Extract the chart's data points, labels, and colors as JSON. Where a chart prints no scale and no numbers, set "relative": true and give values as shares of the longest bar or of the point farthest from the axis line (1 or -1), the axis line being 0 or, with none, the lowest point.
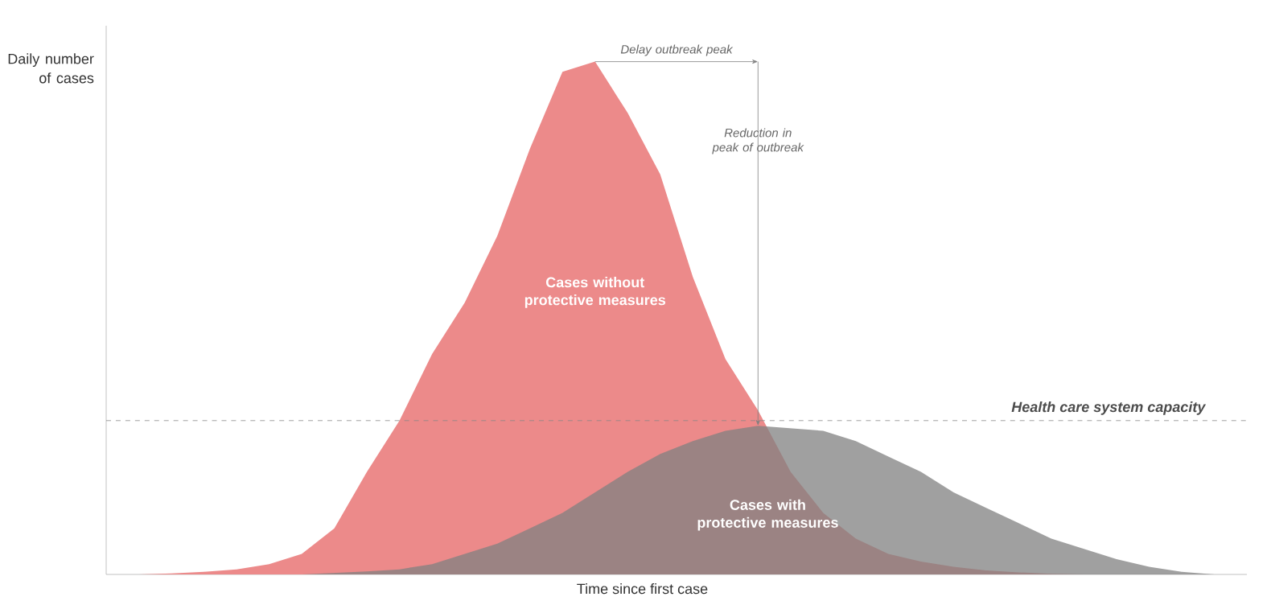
{
  "chart_data": {
    "type": "area",
    "relative": true,
    "xlabel": "Time since first case",
    "ylabel": "Daily number of cases",
    "categories": [
      null,
      null,
      null,
      null,
      null,
      null,
      null,
      null,
      null,
      null,
      null,
      null,
      null,
      null,
      null,
      null,
      null,
      null,
      null,
      null,
      null,
      null,
      null,
      null,
      null,
      null,
      null,
      null,
      null,
      null,
      null,
      null,
      null,
      null,
      null,
      null
    ],
    "series": [
      {
        "name": "Cases without protective measures",
        "color": "#ec8a8a",
        "values": [
          0,
          0,
          0.002,
          0.005,
          0.01,
          0.02,
          0.04,
          0.09,
          0.2,
          0.3,
          0.43,
          0.53,
          0.66,
          0.83,
          0.98,
          1,
          0.9,
          0.78,
          0.58,
          0.42,
          0.32,
          0.2,
          0.12,
          0.07,
          0.04,
          0.025,
          0.015,
          0.008,
          0.004,
          0.001,
          0,
          0,
          0,
          0,
          0,
          0
        ]
      },
      {
        "name": "Cases with protective measures",
        "color": "#a0a0a0",
        "values": [
          0,
          0,
          0,
          0,
          0,
          0,
          0,
          0.003,
          0.006,
          0.01,
          0.02,
          0.04,
          0.06,
          0.09,
          0.12,
          0.16,
          0.2,
          0.235,
          0.26,
          0.28,
          0.29,
          0.285,
          0.28,
          0.26,
          0.23,
          0.2,
          0.16,
          0.13,
          0.1,
          0.07,
          0.05,
          0.03,
          0.015,
          0.005,
          0,
          0
        ]
      }
    ],
    "ref_lines": [
      {
        "axis": "y",
        "value": 0.3,
        "label": "Health care system capacity",
        "line_style": "dashed",
        "color": "#888888"
      }
    ],
    "annotations": [
      "Delay outbreak peak",
      "Reduction in peak of outbreak"
    ]
  }
}
